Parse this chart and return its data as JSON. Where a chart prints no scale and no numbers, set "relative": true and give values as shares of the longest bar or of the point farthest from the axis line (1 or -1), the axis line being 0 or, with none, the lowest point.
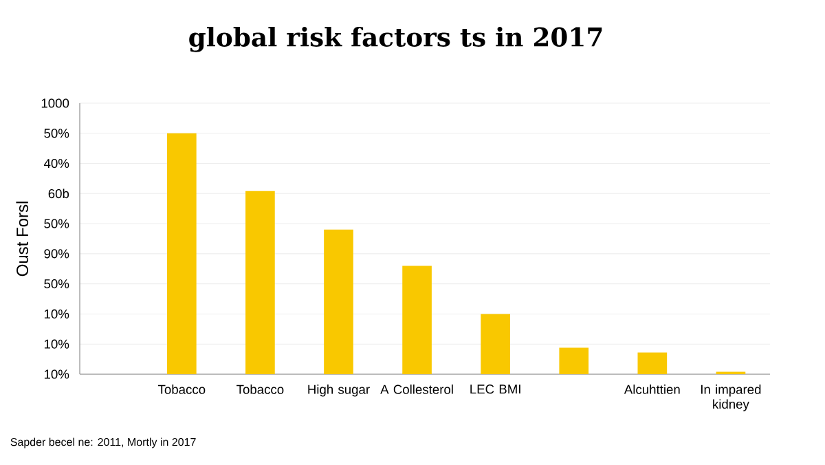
{
  "chart_data": {
    "type": "bar",
    "title": "global risk factors ts in 2017",
    "ylabel": "Oust Forsl",
    "categories": [
      "Tobacco",
      "Tobacco",
      "High sugar",
      "A Collesterol",
      "LEC BMI",
      null,
      "Alcuhttien",
      "In impared kidney"
    ],
    "values": [
      1,
      0.76,
      0.6,
      0.45,
      0.25,
      0.11,
      0.09,
      0.01
    ],
    "relative": true,
    "color": "#f9c800",
    "grid": "y",
    "annotations": [
      "Sapder becel ne: 2011, Mortly in 2017",
      "10%",
      "10%",
      "10%",
      "50%",
      "90%",
      "50%",
      "60b",
      "40%",
      "50%",
      "1000"
    ]
  }
}
